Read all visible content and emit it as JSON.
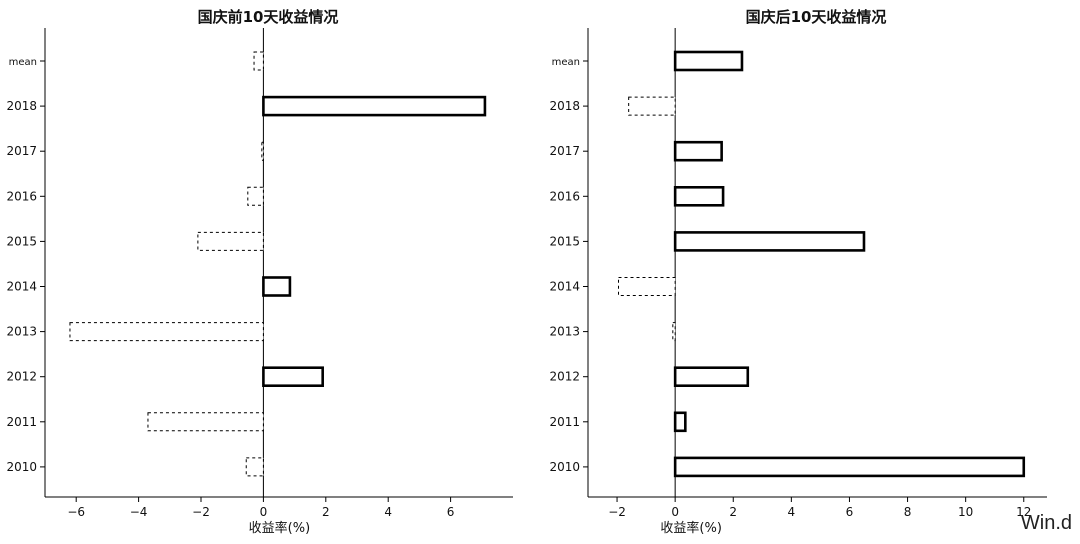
{
  "chart_data": [
    {
      "type": "bar",
      "orientation": "horizontal",
      "title": "国庆前10天收益情况",
      "xlabel": "收益率(%)",
      "ylabel": "",
      "xlim": [
        -7,
        8
      ],
      "xticks": [
        -6,
        -4,
        -2,
        0,
        2,
        4,
        6
      ],
      "xtick_labels": [
        "−6",
        "−4",
        "−2",
        "0",
        "2",
        "4",
        "6"
      ],
      "categories": [
        "mean",
        "2018",
        "2017",
        "2016",
        "2015",
        "2014",
        "2013",
        "2012",
        "2011",
        "2010"
      ],
      "values": [
        -0.3,
        7.1,
        -0.05,
        -0.5,
        -2.1,
        0.85,
        -6.2,
        1.9,
        -3.7,
        -0.55
      ],
      "grid": false,
      "legend": "none"
    },
    {
      "type": "bar",
      "orientation": "horizontal",
      "title": "国庆后10天收益情况",
      "xlabel": "收益率(%)",
      "ylabel": "",
      "xlim": [
        -3,
        12.8
      ],
      "xticks": [
        -2,
        0,
        2,
        4,
        6,
        8,
        10,
        12
      ],
      "xtick_labels": [
        "−2",
        "0",
        "2",
        "4",
        "6",
        "8",
        "10",
        "12"
      ],
      "categories": [
        "mean",
        "2018",
        "2017",
        "2016",
        "2015",
        "2014",
        "2013",
        "2012",
        "2011",
        "2010"
      ],
      "values": [
        2.3,
        -1.6,
        1.6,
        1.65,
        6.5,
        -1.95,
        -0.08,
        2.5,
        0.35,
        12.0
      ],
      "grid": false,
      "legend": "none"
    }
  ],
  "watermark": "Win.d"
}
